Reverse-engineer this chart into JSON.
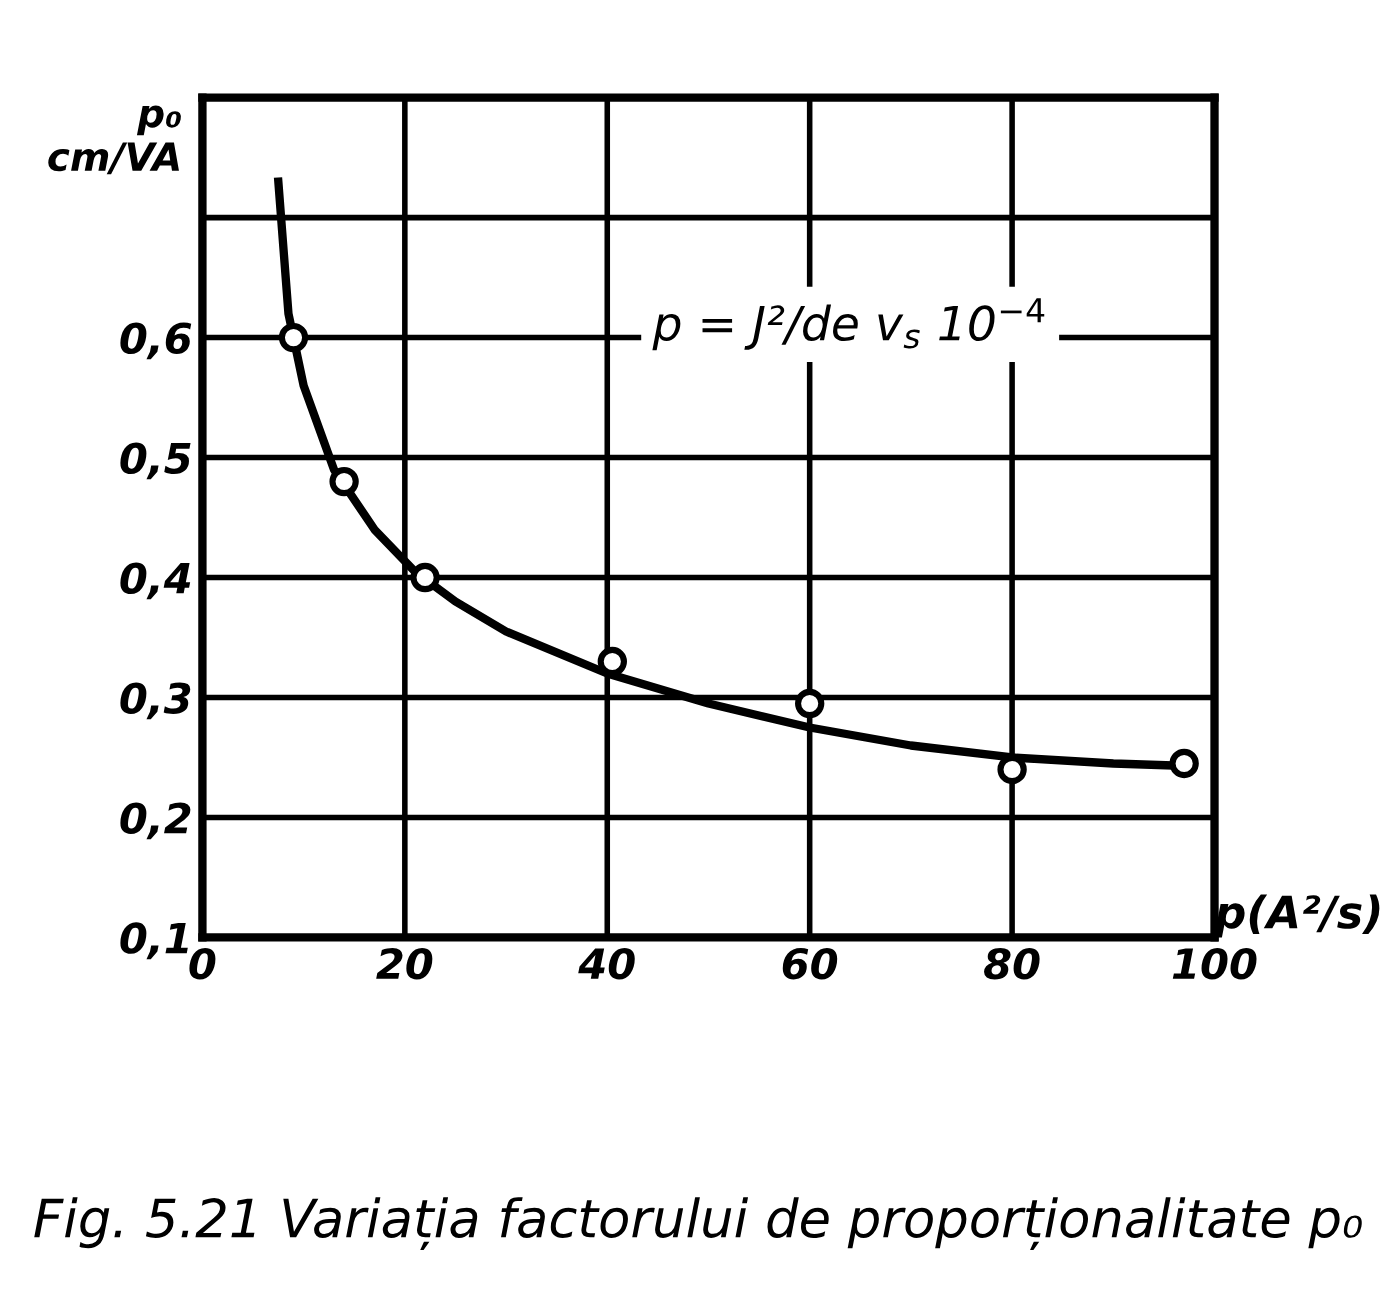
{
  "chart_data": {
    "type": "line",
    "title": "Fig. 5.21 Variația factorului de proporționalitate p₀",
    "xlabel": "p(A²/s)",
    "ylabel": "p₀ cm/VA",
    "annotations": [
      "p = J²/de v$_{s}$ 10$^{−4}$"
    ],
    "series": [
      {
        "type": "scatter",
        "color": "#000000",
        "marker": "circle",
        "x": [
          9,
          14,
          22,
          40.5,
          60,
          80,
          97
        ],
        "values": [
          0.6,
          0.48,
          0.4,
          0.33,
          0.295,
          0.24,
          0.245
        ]
      },
      {
        "color": "#000000",
        "x": [
          7.5,
          8.5,
          10,
          13,
          17,
          21,
          25,
          30,
          40,
          50,
          60,
          70,
          80,
          90,
          97
        ],
        "values": [
          0.73,
          0.62,
          0.56,
          0.49,
          0.44,
          0.405,
          0.38,
          0.355,
          0.32,
          0.295,
          0.275,
          0.26,
          0.25,
          0.245,
          0.243
        ]
      }
    ],
    "xlim": [
      0,
      100
    ],
    "xticks": [
      0,
      20,
      40,
      60,
      80,
      100
    ],
    "ylim": [
      0.1,
      0.8
    ],
    "yticks": [
      {
        "value": 0.1,
        "label": "0,1"
      },
      {
        "value": 0.2,
        "label": "0,2"
      },
      {
        "value": 0.3,
        "label": "0,3"
      },
      {
        "value": 0.4,
        "label": "0,4"
      },
      {
        "value": 0.5,
        "label": "0,5"
      },
      {
        "value": 0.6,
        "label": "0,6"
      },
      {
        "value": 0.7,
        "label": null
      }
    ],
    "grid": true
  }
}
